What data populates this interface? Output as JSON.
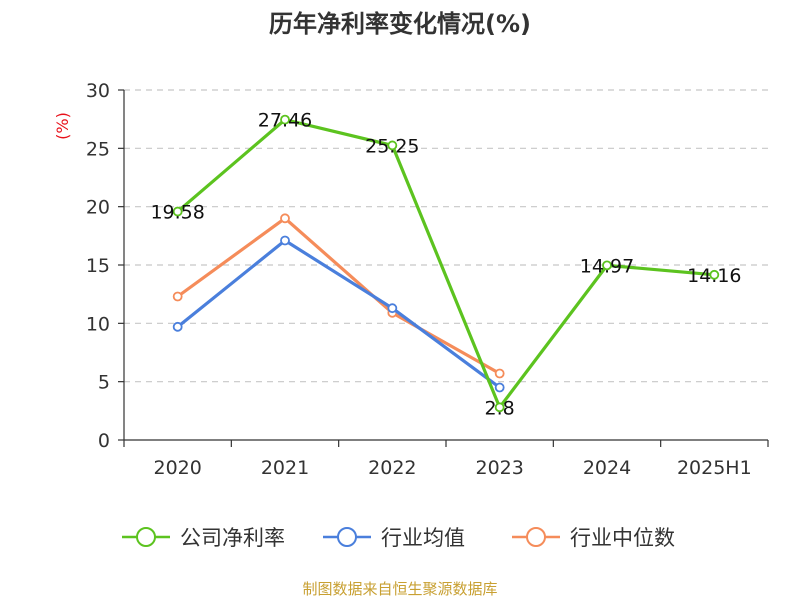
{
  "chart_data": {
    "type": "line",
    "title": "历年净利率变化情况(%)",
    "ylabel": "(%)",
    "xlabel": "",
    "categories": [
      "2020",
      "2021",
      "2022",
      "2023",
      "2024",
      "2025H1"
    ],
    "ylim": [
      0,
      30
    ],
    "yticks": [
      0,
      5,
      10,
      15,
      20,
      25,
      30
    ],
    "grid": true,
    "legend_position": "bottom",
    "series": [
      {
        "name": "公司净利率",
        "color": "#5cc31f",
        "values": [
          19.58,
          27.46,
          25.25,
          2.8,
          14.97,
          14.16
        ],
        "labels": [
          "19.58",
          "27.46",
          "25.25",
          "2.8",
          "14.97",
          "14.16"
        ],
        "show_labels": true
      },
      {
        "name": "行业均值",
        "color": "#4a7fdc",
        "values": [
          9.7,
          17.1,
          11.3,
          4.5,
          null,
          null
        ],
        "show_labels": false
      },
      {
        "name": "行业中位数",
        "color": "#f58c5a",
        "values": [
          12.3,
          19.0,
          10.9,
          5.7,
          null,
          null
        ],
        "show_labels": false
      }
    ]
  },
  "source_note": "制图数据来自恒生聚源数据库"
}
